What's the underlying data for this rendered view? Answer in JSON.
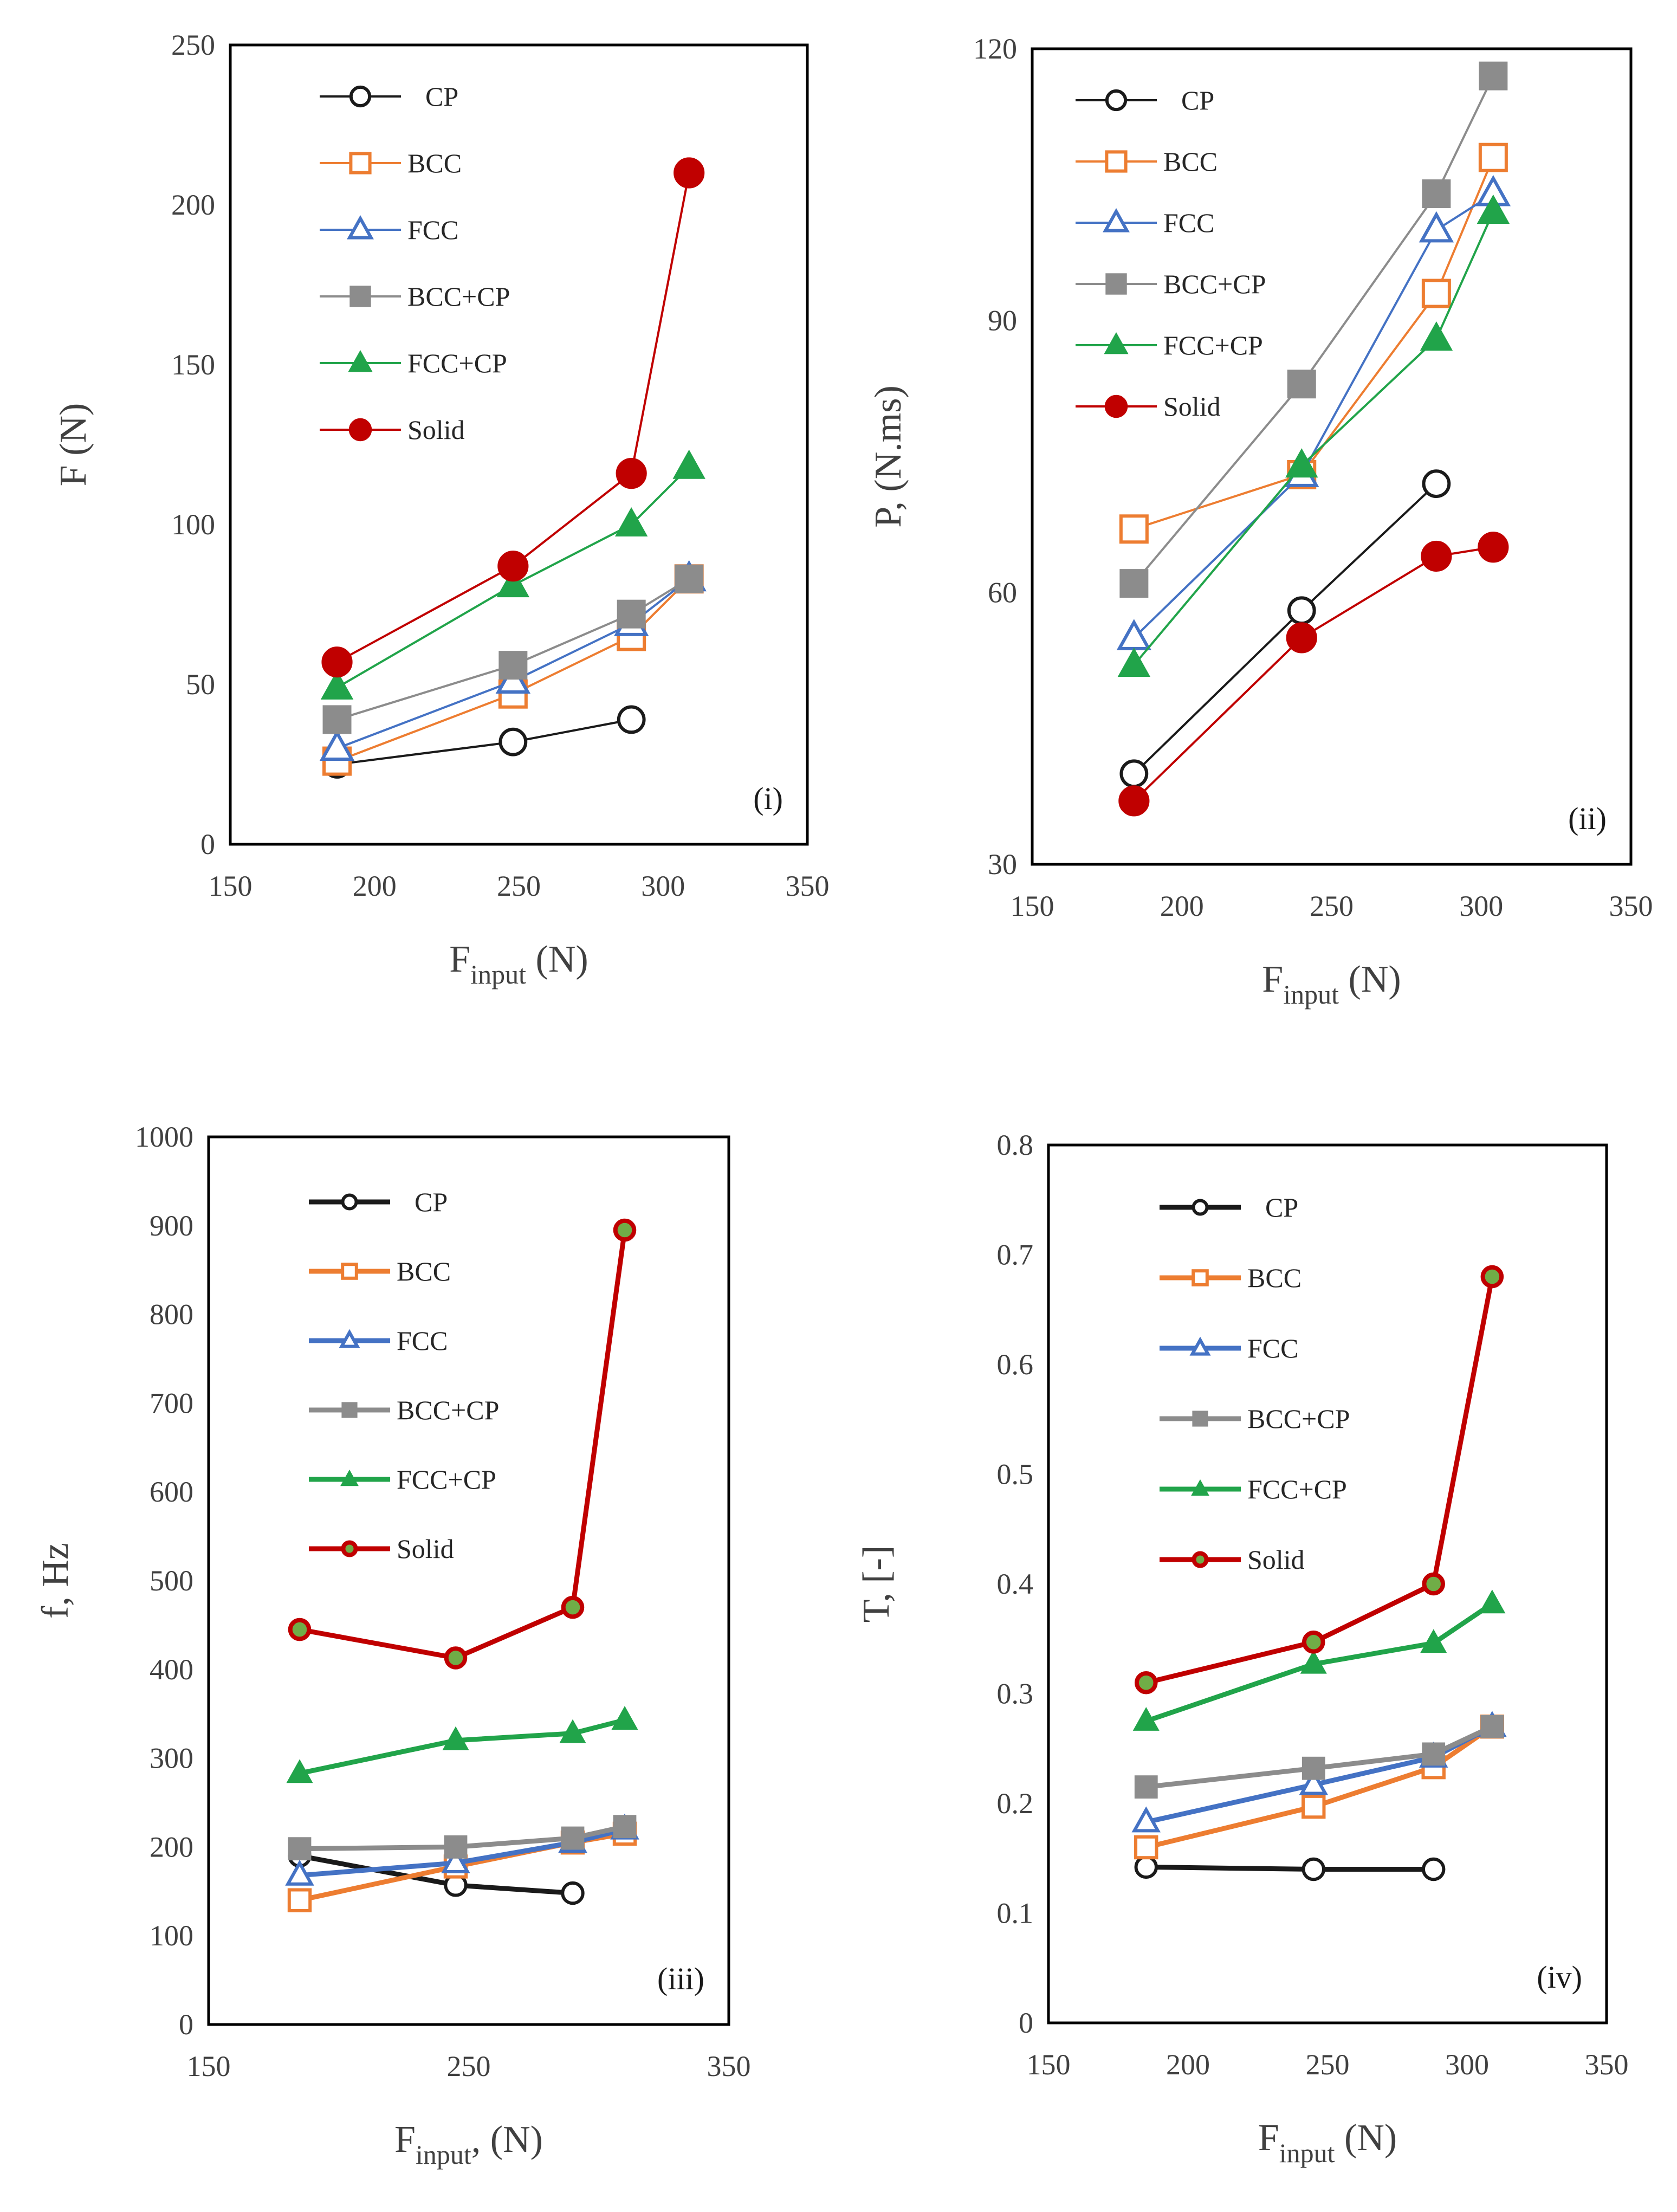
{
  "colors": {
    "CP": "#1a1a1a",
    "BCC": "#ed7d31",
    "FCC": "#4472c4",
    "BCC+CP": "#8c8c8c",
    "FCC+CP": "#21a44a",
    "Solid": "#c00000"
  },
  "chart_data": [
    {
      "type": "line",
      "panel": "(i)",
      "ylabel": "F (N)",
      "xlabel": "Finput (N)",
      "xlabel_main": "F",
      "xlabel_sub": "input",
      "xlabel_tail": " (N)",
      "xlim": [
        150,
        350
      ],
      "ylim": [
        0,
        250
      ],
      "xticks": [
        150,
        200,
        250,
        300,
        350
      ],
      "yticks": [
        0,
        50,
        100,
        150,
        200,
        250
      ],
      "series": [
        {
          "name": "CP",
          "marker": "circle-open",
          "x": [
            187,
            248,
            289
          ],
          "y": [
            25,
            32,
            39
          ]
        },
        {
          "name": "BCC",
          "marker": "square-open",
          "x": [
            187,
            248,
            289,
            309
          ],
          "y": [
            26,
            47,
            65,
            83
          ]
        },
        {
          "name": "FCC",
          "marker": "triangle-open",
          "x": [
            187,
            248,
            289,
            309
          ],
          "y": [
            30,
            51,
            69,
            83
          ]
        },
        {
          "name": "BCC+CP",
          "marker": "square-filled",
          "x": [
            187,
            248,
            289,
            309
          ],
          "y": [
            39,
            56,
            72,
            83
          ]
        },
        {
          "name": "FCC+CP",
          "marker": "triangle-filled",
          "x": [
            187,
            248,
            289,
            309
          ],
          "y": [
            49,
            81,
            100,
            118
          ]
        },
        {
          "name": "Solid",
          "marker": "circle-filled",
          "x": [
            187,
            248,
            289,
            309
          ],
          "y": [
            57,
            87,
            116,
            210
          ]
        }
      ]
    },
    {
      "type": "line",
      "panel": "(ii)",
      "ylabel": "P, (N.ms)",
      "xlabel": "Finput (N)",
      "xlabel_main": "F",
      "xlabel_sub": "input",
      "xlabel_tail": " (N)",
      "xlim": [
        150,
        350
      ],
      "ylim": [
        30,
        120
      ],
      "xticks": [
        150,
        200,
        250,
        300,
        350
      ],
      "yticks": [
        30,
        60,
        90,
        120
      ],
      "series": [
        {
          "name": "CP",
          "marker": "circle-open",
          "x": [
            184,
            240,
            285
          ],
          "y": [
            40,
            58,
            72
          ]
        },
        {
          "name": "BCC",
          "marker": "square-open",
          "x": [
            184,
            240,
            285,
            304
          ],
          "y": [
            67,
            73,
            93,
            108
          ]
        },
        {
          "name": "FCC",
          "marker": "triangle-open",
          "x": [
            184,
            240,
            285,
            304
          ],
          "y": [
            55,
            73,
            100,
            104
          ]
        },
        {
          "name": "BCC+CP",
          "marker": "square-filled",
          "x": [
            184,
            240,
            285,
            304
          ],
          "y": [
            61,
            83,
            104,
            117
          ]
        },
        {
          "name": "FCC+CP",
          "marker": "triangle-filled",
          "x": [
            184,
            240,
            285,
            304
          ],
          "y": [
            52,
            74,
            88,
            102
          ]
        },
        {
          "name": "Solid",
          "marker": "circle-filled",
          "x": [
            184,
            240,
            285,
            304
          ],
          "y": [
            37,
            55,
            64,
            65
          ]
        }
      ]
    },
    {
      "type": "line",
      "panel": "(iii)",
      "ylabel": "f, Hz",
      "xlabel": "Finput, (N)",
      "xlabel_main": "F",
      "xlabel_sub": "input",
      "xlabel_tail": ", (N)",
      "xlim": [
        150,
        350
      ],
      "ylim": [
        0,
        1000
      ],
      "xticks": [
        150,
        250,
        350
      ],
      "yticks": [
        0,
        100,
        200,
        300,
        400,
        500,
        600,
        700,
        800,
        900,
        1000
      ],
      "series": [
        {
          "name": "CP",
          "marker": "circle-open",
          "x": [
            185,
            245,
            290
          ],
          "y": [
            190,
            157,
            148
          ]
        },
        {
          "name": "BCC",
          "marker": "square-open",
          "x": [
            185,
            245,
            290,
            310
          ],
          "y": [
            140,
            178,
            205,
            215
          ]
        },
        {
          "name": "FCC",
          "marker": "triangle-open",
          "x": [
            185,
            245,
            290,
            310
          ],
          "y": [
            168,
            182,
            205,
            220
          ]
        },
        {
          "name": "BCC+CP",
          "marker": "square-filled",
          "x": [
            185,
            245,
            290,
            310
          ],
          "y": [
            198,
            200,
            210,
            223
          ]
        },
        {
          "name": "FCC+CP",
          "marker": "triangle-filled",
          "x": [
            185,
            245,
            290,
            310
          ],
          "y": [
            283,
            320,
            328,
            343
          ]
        },
        {
          "name": "Solid",
          "marker": "circle-green",
          "x": [
            185,
            245,
            290,
            310
          ],
          "y": [
            445,
            413,
            470,
            895
          ]
        }
      ]
    },
    {
      "type": "line",
      "panel": "(iv)",
      "ylabel": "T, [-]",
      "xlabel": "Finput (N)",
      "xlabel_main": "F",
      "xlabel_sub": "input",
      "xlabel_tail": " (N)",
      "xlim": [
        150,
        350
      ],
      "ylim": [
        0,
        0.8
      ],
      "xticks": [
        150,
        200,
        250,
        300,
        350
      ],
      "yticks": [
        0,
        0.1,
        0.2,
        0.3,
        0.4,
        0.5,
        0.6,
        0.7,
        0.8
      ],
      "series": [
        {
          "name": "CP",
          "marker": "circle-open",
          "x": [
            185,
            245,
            288
          ],
          "y": [
            0.142,
            0.14,
            0.14
          ]
        },
        {
          "name": "BCC",
          "marker": "square-open",
          "x": [
            185,
            245,
            288,
            309
          ],
          "y": [
            0.16,
            0.197,
            0.233,
            0.27
          ]
        },
        {
          "name": "FCC",
          "marker": "triangle-open",
          "x": [
            185,
            245,
            288,
            309
          ],
          "y": [
            0.183,
            0.217,
            0.242,
            0.27
          ]
        },
        {
          "name": "BCC+CP",
          "marker": "square-filled",
          "x": [
            185,
            245,
            288,
            309
          ],
          "y": [
            0.215,
            0.232,
            0.245,
            0.27
          ]
        },
        {
          "name": "FCC+CP",
          "marker": "triangle-filled",
          "x": [
            185,
            245,
            288,
            309
          ],
          "y": [
            0.275,
            0.327,
            0.346,
            0.382
          ]
        },
        {
          "name": "Solid",
          "marker": "circle-green",
          "x": [
            185,
            245,
            288,
            309
          ],
          "y": [
            0.31,
            0.347,
            0.4,
            0.68
          ]
        }
      ]
    }
  ]
}
